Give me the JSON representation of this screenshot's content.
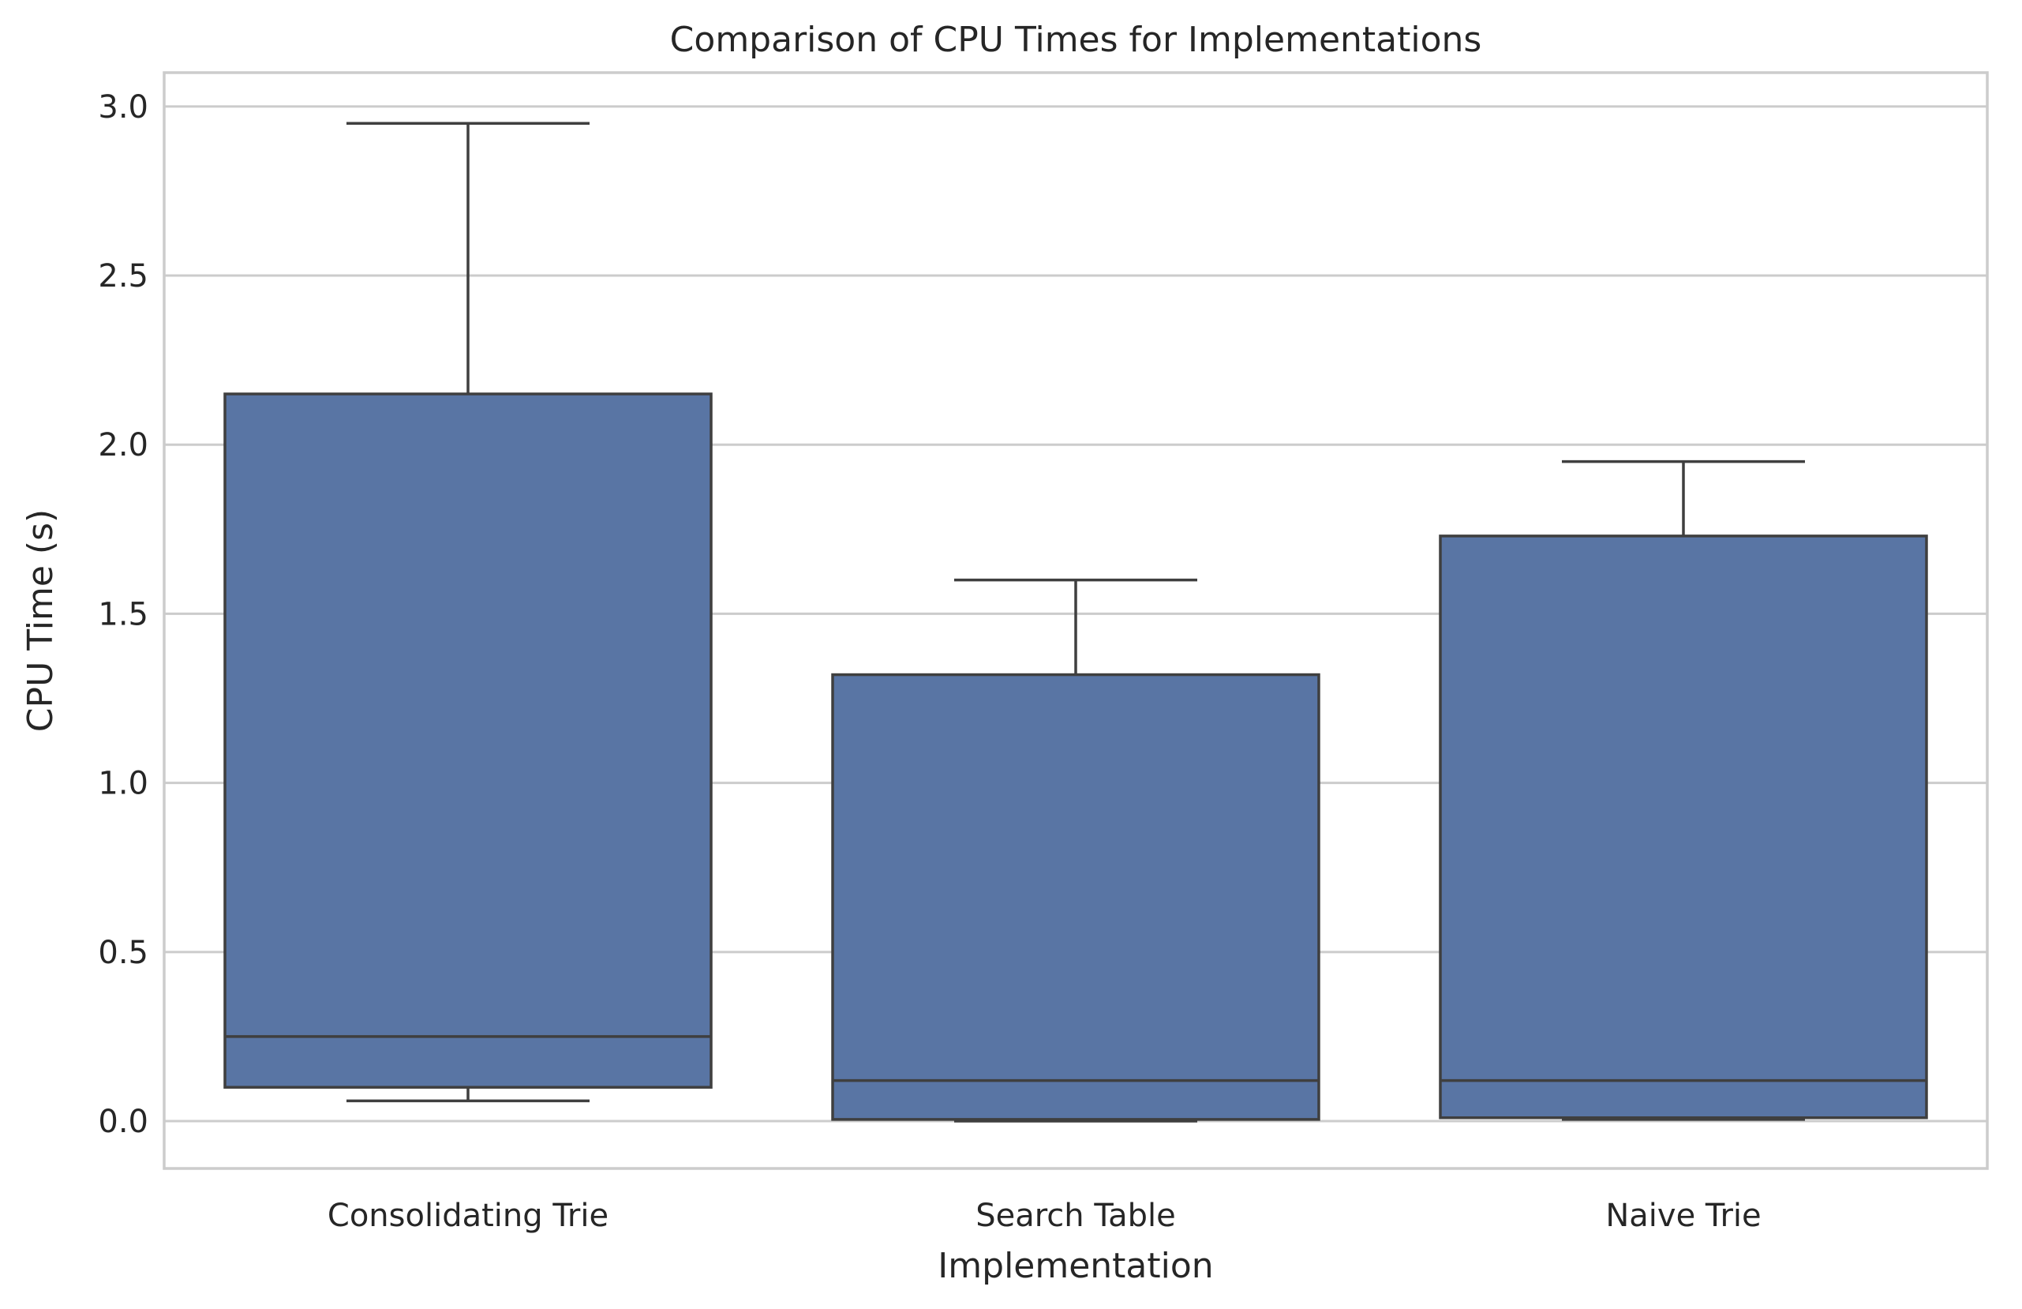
{
  "chart_data": {
    "type": "box",
    "title": "Comparison of CPU Times for Implementations",
    "xlabel": "Implementation",
    "ylabel": "CPU Time (s)",
    "ylim": [
      -0.14,
      3.1
    ],
    "yticks": [
      "0.0",
      "0.5",
      "1.0",
      "1.5",
      "2.0",
      "2.5",
      "3.0"
    ],
    "ytick_values": [
      0.0,
      0.5,
      1.0,
      1.5,
      2.0,
      2.5,
      3.0
    ],
    "grid": true,
    "categories": [
      "Consolidating Trie",
      "Search Table",
      "Naive Trie"
    ],
    "box_color": "#5975a4",
    "line_color": "#3f3f3f",
    "boxes": [
      {
        "category": "Consolidating Trie",
        "whisker_low": 0.06,
        "q1": 0.1,
        "median": 0.25,
        "q3": 2.15,
        "whisker_high": 2.95
      },
      {
        "category": "Search Table",
        "whisker_low": 0.0,
        "q1": 0.005,
        "median": 0.12,
        "q3": 1.32,
        "whisker_high": 1.6
      },
      {
        "category": "Naive Trie",
        "whisker_low": 0.005,
        "q1": 0.01,
        "median": 0.12,
        "q3": 1.73,
        "whisker_high": 1.95
      }
    ]
  }
}
